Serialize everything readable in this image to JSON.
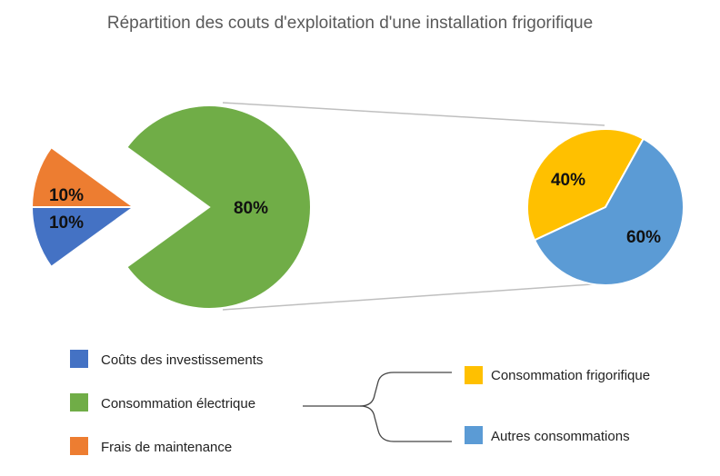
{
  "chart_data": {
    "type": "pie",
    "subtype": "pie-of-pie",
    "title": "Répartition des couts d'exploitation d'une installation frigorifique",
    "main_pie": {
      "slices": [
        {
          "name": "Coûts des investissements",
          "value": 10,
          "label": "10%",
          "color": "#4472C4"
        },
        {
          "name": "Frais de maintenance",
          "value": 10,
          "label": "10%",
          "color": "#ED7D31"
        },
        {
          "name": "Consommation électrique",
          "value": 80,
          "label": "80%",
          "color": "#70AD47"
        }
      ]
    },
    "secondary_pie": {
      "parent": "Consommation électrique",
      "slices": [
        {
          "name": "Consommation frigorifique",
          "value": 40,
          "label": "40%",
          "color": "#FFC000"
        },
        {
          "name": "Autres consommations",
          "value": 60,
          "label": "60%",
          "color": "#5B9BD5"
        }
      ]
    },
    "legend": {
      "main": [
        "Coûts des investissements",
        "Consommation électrique",
        "Frais de maintenance"
      ],
      "secondary": [
        "Consommation frigorifique",
        "Autres consommations"
      ]
    }
  }
}
